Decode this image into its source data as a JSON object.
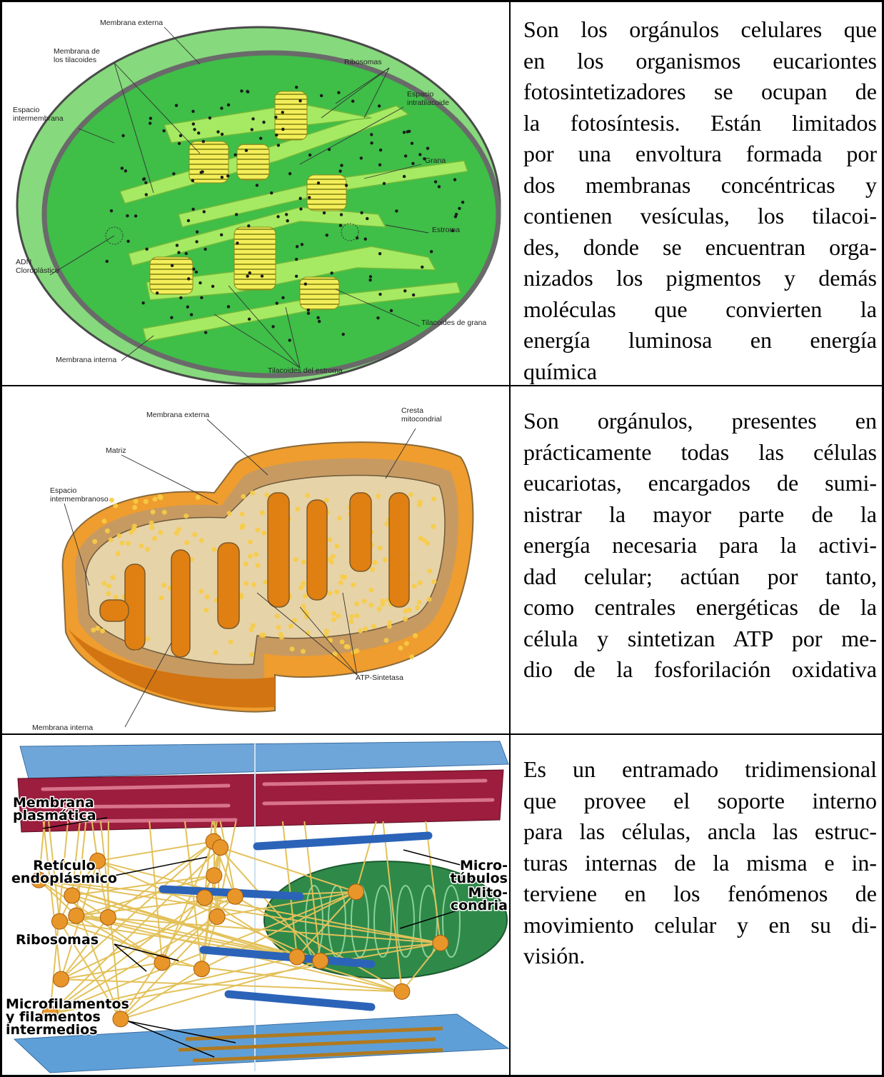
{
  "rows": [
    {
      "figure_labels": [
        [
          "Membrana externa"
        ],
        [
          "Membrana de",
          "los tilacoides"
        ],
        [
          "Ribosomas"
        ],
        [
          "Espacio",
          "intratilacoide"
        ],
        [
          "Espacio",
          "intermembrana"
        ],
        [
          "Grana"
        ],
        [
          "Estroma"
        ],
        [
          "ADN",
          "Cloroplástico"
        ],
        [
          "Tilacoides de grana"
        ],
        [
          "Membrana interna"
        ],
        [
          "Tilacoides del estroma"
        ]
      ],
      "text_lines": [
        "Son los orgánulos celulares que",
        "en los organismos eucariontes",
        "fotosintetizadores se ocupan de",
        "la fotosíntesis. Están limitados",
        "por una envoltura formada por",
        "dos membranas concéntricas y",
        "contienen vesículas, los tilacoi-",
        "des, donde se encuentran orga-",
        "nizados los pigmentos y demás",
        "moléculas que convierten la",
        "energía luminosa en energía",
        "química"
      ]
    },
    {
      "figure_labels": [
        [
          "Membrana externa"
        ],
        [
          "Cresta",
          "mitocondrial"
        ],
        [
          "Matriz"
        ],
        [
          "Espacio",
          "intermembranoso"
        ],
        [
          "ATP-Sintetasa"
        ],
        [
          "Membrana interna"
        ]
      ],
      "text_lines": [
        "Son orgánulos, presentes en",
        "prácticamente todas las células",
        "eucariotas, encargados de sumi-",
        "nistrar la mayor parte de la",
        "energía necesaria para la activi-",
        "dad celular; actúan por tanto,",
        "como centrales energéticas de la",
        "célula y sintetizan ATP por me-",
        "dio de la fosforilación oxidativa"
      ]
    },
    {
      "figure_labels": [
        [
          "Membrana",
          "plasmática"
        ],
        [
          "Retículo",
          "endoplásmico"
        ],
        [
          "Micro-",
          "túbulos"
        ],
        [
          "Mito-",
          "condria"
        ],
        [
          "Ribosomas"
        ],
        [
          "Microfilamentos",
          "y filamentos",
          "intermedios"
        ]
      ],
      "text_lines": [
        "Es un entramado tridimensional",
        "que provee el soporte interno",
        "para las células, ancla las estruc-",
        "turas internas de la misma e in-",
        "terviene en los fenómenos de",
        "movimiento celular y en su di-",
        "visión."
      ]
    }
  ]
}
